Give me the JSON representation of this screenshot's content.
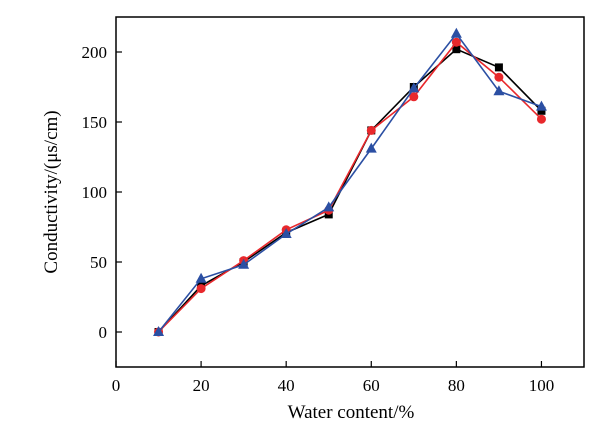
{
  "chart_data": {
    "type": "line",
    "title": "",
    "xlabel": "Water content/%",
    "ylabel": "Conductivity/(μs/cm)",
    "xlim": [
      0,
      110
    ],
    "ylim": [
      -25,
      225
    ],
    "xticks": [
      0,
      20,
      40,
      60,
      80,
      100
    ],
    "yticks": [
      0,
      50,
      100,
      150,
      200
    ],
    "grid": false,
    "legend": "none",
    "series": [
      {
        "marker": "square",
        "color": "#000000",
        "x": [
          10,
          20,
          30,
          40,
          50,
          60,
          70,
          80,
          90,
          100
        ],
        "y": [
          0,
          33,
          50,
          71,
          84,
          144,
          175,
          202,
          189,
          158
        ]
      },
      {
        "marker": "circle",
        "color": "#e8282c",
        "x": [
          10,
          20,
          30,
          40,
          50,
          60,
          70,
          80,
          90,
          100
        ],
        "y": [
          0,
          31,
          51,
          73,
          87,
          144,
          168,
          207,
          182,
          152
        ]
      },
      {
        "marker": "triangle",
        "color": "#2b4fa3",
        "x": [
          10,
          20,
          30,
          40,
          50,
          60,
          70,
          80,
          90,
          100
        ],
        "y": [
          0,
          38,
          48,
          70,
          89,
          131,
          174,
          213,
          172,
          161
        ]
      }
    ]
  }
}
